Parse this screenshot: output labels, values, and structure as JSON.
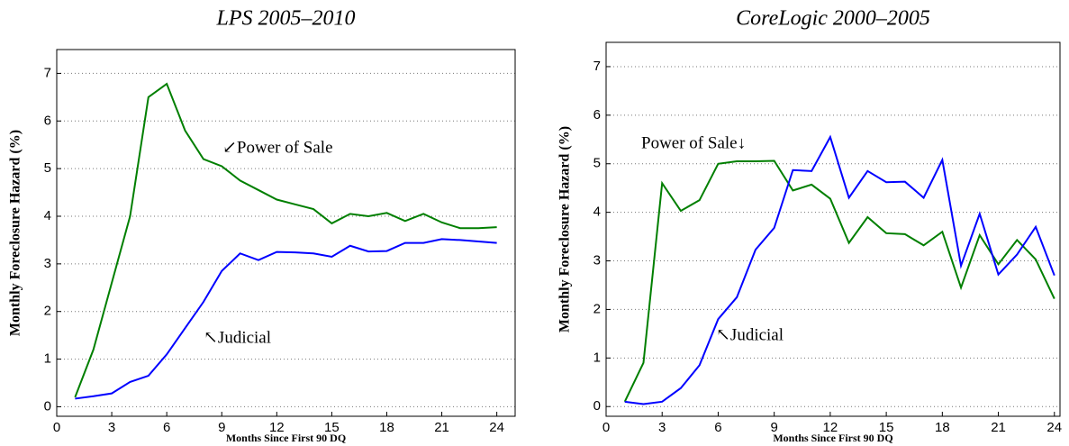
{
  "chart_data": [
    {
      "type": "line",
      "title": "LPS 2005–2010",
      "x_label": "Months Since First 90 DQ",
      "y_label": "Monthly Foreclosure Hazard (%)",
      "x": [
        1,
        2,
        3,
        4,
        5,
        6,
        7,
        8,
        9,
        10,
        11,
        12,
        13,
        14,
        15,
        16,
        17,
        18,
        19,
        20,
        21,
        22,
        23,
        24
      ],
      "series": [
        {
          "name": "Power of Sale",
          "color": "#007f00",
          "values": [
            0.2,
            1.2,
            2.6,
            4.0,
            6.5,
            6.78,
            5.8,
            5.2,
            5.05,
            4.75,
            4.55,
            4.35,
            4.25,
            4.15,
            3.85,
            4.05,
            4.0,
            4.07,
            3.9,
            4.05,
            3.87,
            3.75,
            3.75,
            3.77
          ]
        },
        {
          "name": "Judicial",
          "color": "#0000ff",
          "values": [
            0.17,
            0.22,
            0.28,
            0.52,
            0.65,
            1.1,
            1.65,
            2.2,
            2.85,
            3.22,
            3.08,
            3.25,
            3.24,
            3.22,
            3.15,
            3.38,
            3.26,
            3.27,
            3.44,
            3.44,
            3.52,
            3.5,
            3.47,
            3.44
          ]
        }
      ],
      "annotations": [
        "↙Power of Sale",
        "↖Judicial"
      ],
      "xlim": [
        0,
        25
      ],
      "ylim": [
        -0.2,
        7.5
      ],
      "xticks": [
        0,
        3,
        6,
        9,
        12,
        15,
        18,
        21,
        24
      ],
      "yticks": [
        0,
        1,
        2,
        3,
        4,
        5,
        6,
        7
      ],
      "grid": true
    },
    {
      "type": "line",
      "title": "CoreLogic 2000–2005",
      "x_label": "Months Since First 90 DQ",
      "y_label": "Monthly Foreclosure Hazard (%)",
      "x": [
        1,
        2,
        3,
        4,
        5,
        6,
        7,
        8,
        9,
        10,
        11,
        12,
        13,
        14,
        15,
        16,
        17,
        18,
        19,
        20,
        21,
        22,
        23,
        24
      ],
      "series": [
        {
          "name": "Power of Sale",
          "color": "#007f00",
          "values": [
            0.1,
            0.9,
            4.6,
            4.03,
            4.25,
            5.0,
            5.05,
            5.05,
            5.06,
            4.45,
            4.57,
            4.28,
            3.37,
            3.9,
            3.57,
            3.55,
            3.32,
            3.6,
            2.45,
            3.53,
            2.93,
            3.43,
            3.03,
            2.22
          ]
        },
        {
          "name": "Judicial",
          "color": "#0000ff",
          "values": [
            0.1,
            0.05,
            0.1,
            0.38,
            0.85,
            1.8,
            2.25,
            3.23,
            3.68,
            4.87,
            4.85,
            5.55,
            4.3,
            4.85,
            4.62,
            4.63,
            4.3,
            5.08,
            2.9,
            3.97,
            2.72,
            3.13,
            3.7,
            2.7
          ]
        }
      ],
      "annotations": [
        "Power of Sale↓",
        "↖Judicial"
      ],
      "xlim": [
        0,
        24.3
      ],
      "ylim": [
        -0.2,
        7.5
      ],
      "xticks": [
        0,
        3,
        6,
        9,
        12,
        15,
        18,
        21,
        24
      ],
      "yticks": [
        0,
        1,
        2,
        3,
        4,
        5,
        6,
        7
      ],
      "grid": true
    }
  ]
}
